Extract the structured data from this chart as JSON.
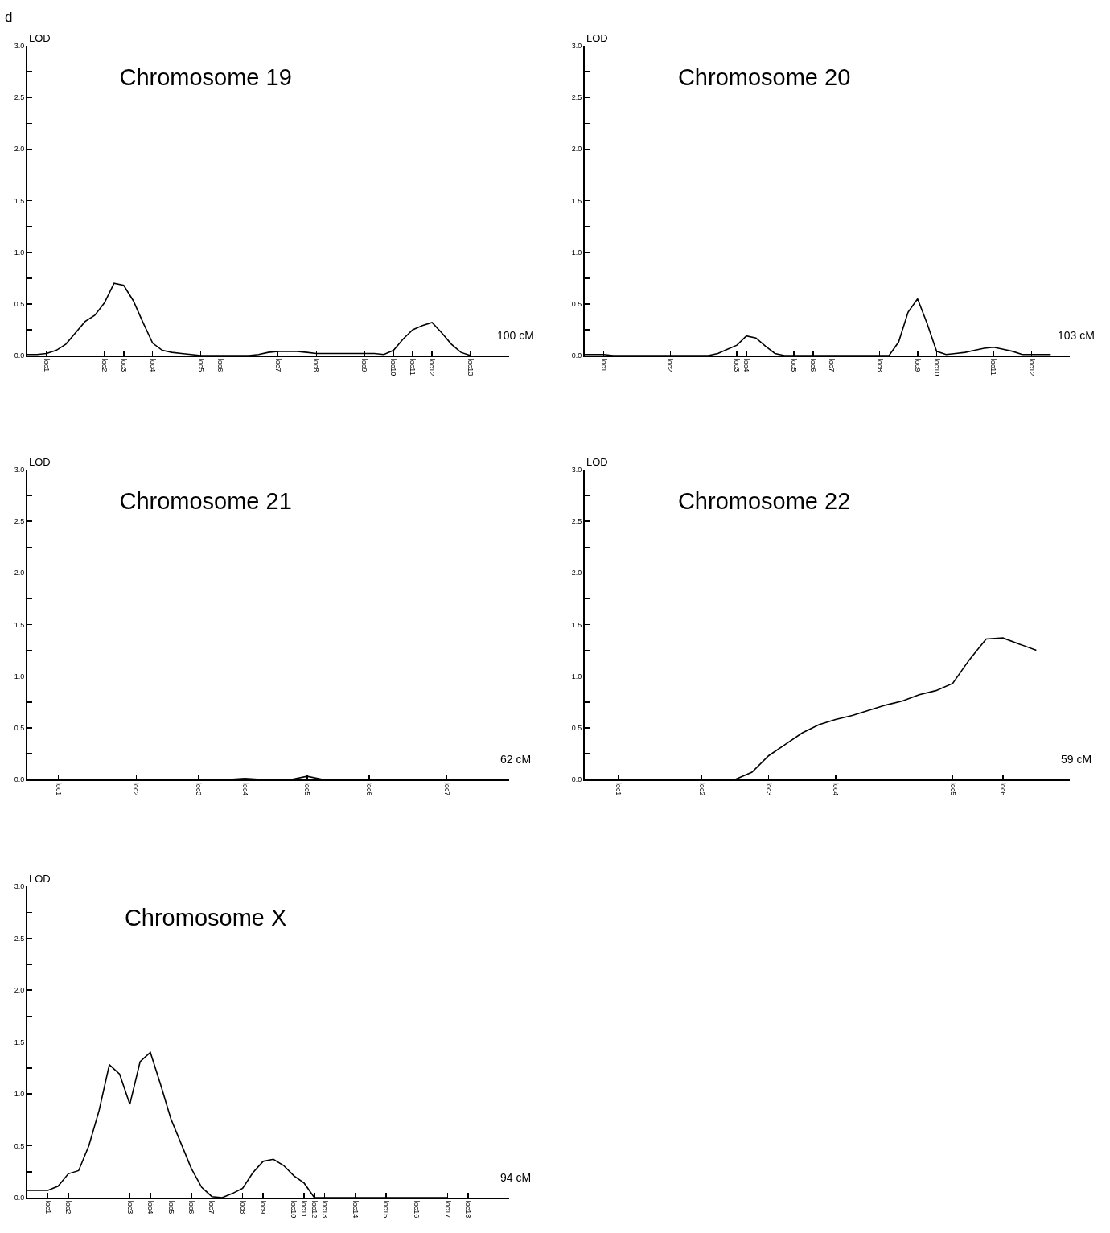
{
  "chart_data": [
    {
      "type": "line",
      "title": "Chromosome 19",
      "ylabel": "LOD",
      "annotations": [
        "d",
        "100 cM"
      ],
      "ylim": [
        0,
        3
      ],
      "categories": [
        null,
        null,
        "loc1",
        null,
        null,
        null,
        null,
        null,
        "loc2",
        null,
        "loc3",
        null,
        null,
        "loc4",
        null,
        null,
        null,
        null,
        "loc5",
        null,
        "loc6",
        null,
        null,
        null,
        null,
        null,
        "loc7",
        null,
        null,
        null,
        "loc8",
        null,
        null,
        null,
        null,
        "loc9",
        null,
        null,
        "loc10",
        null,
        "loc11",
        null,
        "loc12",
        null,
        null,
        null,
        "loc13",
        null,
        null,
        null,
        null
      ],
      "yticks": [
        {
          "value": 0,
          "label": "0.0"
        },
        {
          "value": 0.25,
          "label": null
        },
        {
          "value": 0.5,
          "label": "0.5"
        },
        {
          "value": 0.75,
          "label": null
        },
        {
          "value": 1,
          "label": "1.0"
        },
        {
          "value": 1.25,
          "label": null
        },
        {
          "value": 1.5,
          "label": "1.5"
        },
        {
          "value": 1.75,
          "label": null
        },
        {
          "value": 2,
          "label": "2.0"
        },
        {
          "value": 2.25,
          "label": null
        },
        {
          "value": 2.5,
          "label": "2.5"
        },
        {
          "value": 2.75,
          "label": null
        },
        {
          "value": 3,
          "label": "3.0"
        }
      ],
      "grid": false,
      "marker": "none",
      "line_style": "solid",
      "series": [
        {
          "color": "#000000",
          "values": [
            0.01,
            0.01,
            0.02,
            0.05,
            0.11,
            0.22,
            0.33,
            0.39,
            0.51,
            0.7,
            0.68,
            0.53,
            0.32,
            0.12,
            0.05,
            0.03,
            0.02,
            0.01,
            0,
            0,
            0,
            0,
            0,
            0,
            0.01,
            0.03,
            0.04,
            0.04,
            0.04,
            0.03,
            0.02,
            0.02,
            0.02,
            0.02,
            0.02,
            0.02,
            0.02,
            0.01,
            0.05,
            0.16,
            0.25,
            0.29,
            0.32,
            0.22,
            0.11,
            0.03,
            0,
            null,
            null,
            null,
            null
          ]
        }
      ]
    },
    {
      "type": "line",
      "title": "Chromosome 20",
      "ylabel": "LOD",
      "annotations": [
        "103 cM"
      ],
      "ylim": [
        0,
        3
      ],
      "categories": [
        null,
        null,
        "loc1",
        null,
        null,
        null,
        null,
        null,
        null,
        "loc2",
        null,
        null,
        null,
        null,
        null,
        null,
        "loc3",
        "loc4",
        null,
        null,
        null,
        null,
        "loc5",
        null,
        "loc6",
        null,
        "loc7",
        null,
        null,
        null,
        null,
        "loc8",
        null,
        null,
        null,
        "loc9",
        null,
        "loc10",
        null,
        null,
        null,
        null,
        null,
        "loc11",
        null,
        null,
        null,
        "loc12",
        null,
        null,
        null,
        null
      ],
      "yticks": [
        {
          "value": 0,
          "label": "0.0"
        },
        {
          "value": 0.25,
          "label": null
        },
        {
          "value": 0.5,
          "label": "0.5"
        },
        {
          "value": 0.75,
          "label": null
        },
        {
          "value": 1,
          "label": "1.0"
        },
        {
          "value": 1.25,
          "label": null
        },
        {
          "value": 1.5,
          "label": "1.5"
        },
        {
          "value": 1.75,
          "label": null
        },
        {
          "value": 2,
          "label": "2.0"
        },
        {
          "value": 2.25,
          "label": null
        },
        {
          "value": 2.5,
          "label": "2.5"
        },
        {
          "value": 2.75,
          "label": null
        },
        {
          "value": 3,
          "label": "3.0"
        }
      ],
      "grid": false,
      "marker": "none",
      "line_style": "solid",
      "series": [
        {
          "color": "#000000",
          "values": [
            0.01,
            0.01,
            0.01,
            0,
            0,
            0,
            0,
            0,
            0,
            0,
            0,
            0,
            0,
            0,
            0.02,
            0.06,
            0.1,
            0.19,
            0.17,
            0.09,
            0.02,
            0,
            0,
            0,
            0,
            0,
            0,
            0,
            0,
            0,
            0,
            0,
            0,
            0.13,
            0.42,
            0.55,
            0.31,
            0.04,
            0.01,
            0.02,
            0.03,
            0.05,
            0.07,
            0.08,
            0.06,
            0.04,
            0.01,
            0.01,
            0.01,
            0.01,
            null,
            null
          ]
        }
      ]
    },
    {
      "type": "line",
      "title": "Chromosome 21",
      "ylabel": "LOD",
      "annotations": [
        "62 cM"
      ],
      "ylim": [
        0,
        3
      ],
      "categories": [
        null,
        null,
        "loc1",
        null,
        null,
        null,
        null,
        "loc2",
        null,
        null,
        null,
        "loc3",
        null,
        null,
        "loc4",
        null,
        null,
        null,
        "loc5",
        null,
        null,
        null,
        "loc6",
        null,
        null,
        null,
        null,
        "loc7",
        null,
        null,
        null,
        null
      ],
      "yticks": [
        {
          "value": 0,
          "label": "0.0"
        },
        {
          "value": 0.25,
          "label": null
        },
        {
          "value": 0.5,
          "label": "0.5"
        },
        {
          "value": 0.75,
          "label": null
        },
        {
          "value": 1,
          "label": "1.0"
        },
        {
          "value": 1.25,
          "label": null
        },
        {
          "value": 1.5,
          "label": "1.5"
        },
        {
          "value": 1.75,
          "label": null
        },
        {
          "value": 2,
          "label": "2.0"
        },
        {
          "value": 2.25,
          "label": null
        },
        {
          "value": 2.5,
          "label": "2.5"
        },
        {
          "value": 2.75,
          "label": null
        },
        {
          "value": 3,
          "label": "3.0"
        }
      ],
      "grid": false,
      "marker": "none",
      "line_style": "solid",
      "series": [
        {
          "color": "#000000",
          "values": [
            0,
            0,
            0,
            0,
            0,
            0,
            0,
            0,
            0,
            0,
            0,
            0,
            0,
            0,
            0.01,
            0,
            0,
            0,
            0.03,
            0,
            0,
            0,
            0,
            0,
            0,
            0,
            0,
            0,
            0,
            null,
            null,
            null
          ]
        }
      ]
    },
    {
      "type": "line",
      "title": "Chromosome 22",
      "ylabel": "LOD",
      "annotations": [
        "59 cM"
      ],
      "ylim": [
        0,
        3
      ],
      "categories": [
        null,
        null,
        "loc1",
        null,
        null,
        null,
        null,
        "loc2",
        null,
        null,
        null,
        "loc3",
        null,
        null,
        null,
        "loc4",
        null,
        null,
        null,
        null,
        null,
        null,
        "loc5",
        null,
        null,
        "loc6",
        null,
        null,
        null,
        null
      ],
      "yticks": [
        {
          "value": 0,
          "label": "0.0"
        },
        {
          "value": 0.25,
          "label": null
        },
        {
          "value": 0.5,
          "label": "0.5"
        },
        {
          "value": 0.75,
          "label": null
        },
        {
          "value": 1,
          "label": "1.0"
        },
        {
          "value": 1.25,
          "label": null
        },
        {
          "value": 1.5,
          "label": "1.5"
        },
        {
          "value": 1.75,
          "label": null
        },
        {
          "value": 2,
          "label": "2.0"
        },
        {
          "value": 2.25,
          "label": null
        },
        {
          "value": 2.5,
          "label": "2.5"
        },
        {
          "value": 2.75,
          "label": null
        },
        {
          "value": 3,
          "label": "3.0"
        }
      ],
      "grid": false,
      "marker": "none",
      "line_style": "solid",
      "series": [
        {
          "color": "#000000",
          "values": [
            0,
            0,
            0,
            0,
            0,
            0,
            0,
            0,
            0,
            0,
            0.07,
            0.23,
            0.34,
            0.45,
            0.53,
            0.58,
            0.62,
            0.67,
            0.72,
            0.76,
            0.82,
            0.86,
            0.93,
            1.16,
            1.36,
            1.37,
            1.31,
            1.25,
            null,
            null
          ]
        }
      ]
    },
    {
      "type": "line",
      "title": "Chromosome X",
      "ylabel": "LOD",
      "annotations": [
        "94 cM"
      ],
      "ylim": [
        0,
        3
      ],
      "categories": [
        null,
        null,
        "loc1",
        null,
        "loc2",
        null,
        null,
        null,
        null,
        null,
        "loc3",
        null,
        "loc4",
        null,
        "loc5",
        null,
        "loc6",
        null,
        "loc7",
        null,
        null,
        "loc8",
        null,
        "loc9",
        null,
        null,
        "loc10",
        "loc11",
        "loc12",
        "loc13",
        null,
        null,
        "loc14",
        null,
        null,
        "loc15",
        null,
        null,
        "loc16",
        null,
        null,
        "loc17",
        null,
        "loc18",
        null,
        null,
        null,
        null
      ],
      "yticks": [
        {
          "value": 0,
          "label": "0.0"
        },
        {
          "value": 0.25,
          "label": null
        },
        {
          "value": 0.5,
          "label": "0.5"
        },
        {
          "value": 0.75,
          "label": null
        },
        {
          "value": 1,
          "label": "1.0"
        },
        {
          "value": 1.25,
          "label": null
        },
        {
          "value": 1.5,
          "label": "1.5"
        },
        {
          "value": 1.75,
          "label": null
        },
        {
          "value": 2,
          "label": "2.0"
        },
        {
          "value": 2.25,
          "label": null
        },
        {
          "value": 2.5,
          "label": "2.5"
        },
        {
          "value": 2.75,
          "label": null
        },
        {
          "value": 3,
          "label": "3.0"
        }
      ],
      "grid": false,
      "marker": "none",
      "line_style": "solid",
      "series": [
        {
          "color": "#000000",
          "values": [
            0.07,
            0.07,
            0.07,
            0.11,
            0.23,
            0.26,
            0.5,
            0.84,
            1.28,
            1.19,
            0.9,
            1.31,
            1.4,
            1.09,
            0.76,
            0.52,
            0.28,
            0.1,
            0.01,
            0,
            0.04,
            0.09,
            0.24,
            0.35,
            0.37,
            0.31,
            0.21,
            0.14,
            0,
            0,
            0,
            0,
            0,
            0,
            0,
            0,
            0,
            0,
            0,
            0,
            0,
            0,
            null,
            null,
            null,
            null,
            null,
            null
          ]
        }
      ]
    }
  ]
}
